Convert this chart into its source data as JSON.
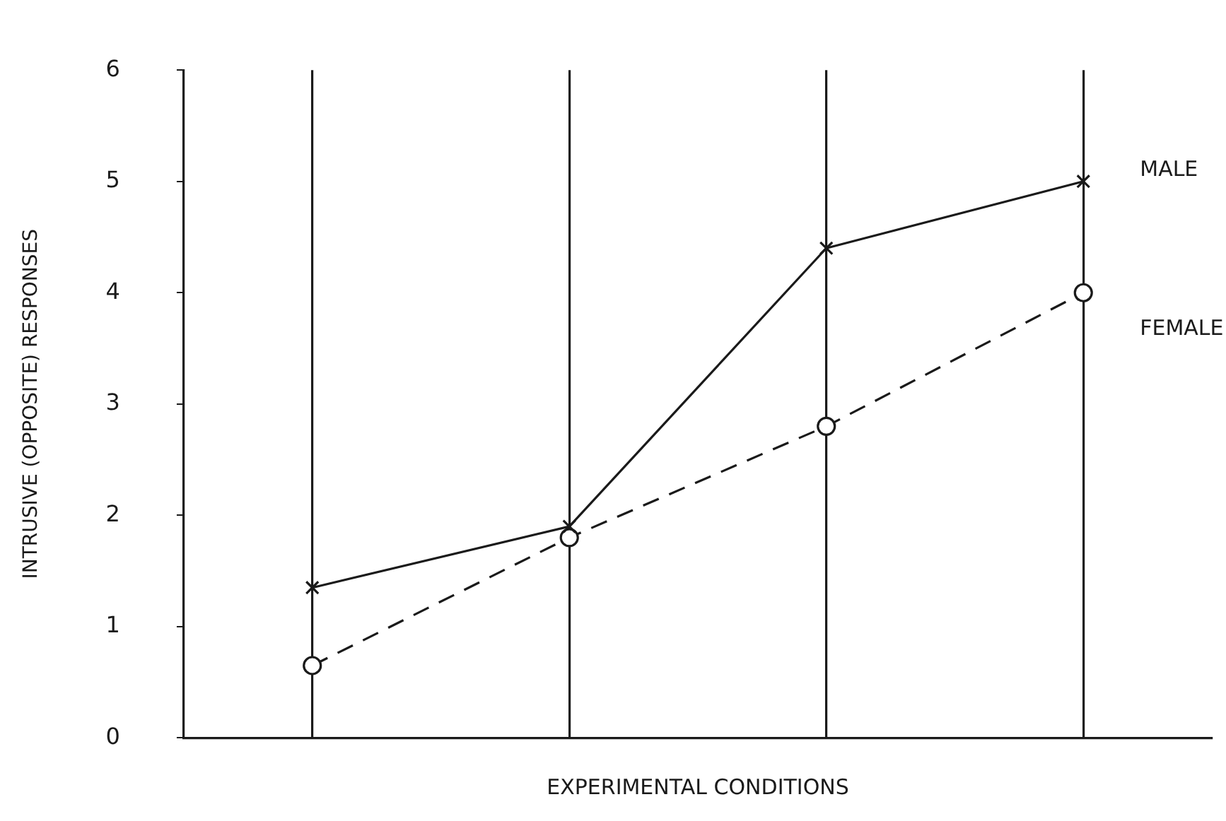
{
  "chart_data": {
    "type": "line",
    "xlabel": "EXPERIMENTAL CONDITIONS",
    "ylabel": "INTRUSIVE (OPPOSITE) RESPONSES",
    "categories": [
      null,
      null,
      null,
      null
    ],
    "series": [
      {
        "name": "MALE",
        "color": "#1a1a1a",
        "values": [
          1.35,
          1.9,
          4.4,
          5.0
        ],
        "marker": "cross",
        "line_style": "solid"
      },
      {
        "name": "FEMALE",
        "color": "#1a1a1a",
        "values": [
          0.65,
          1.8,
          2.8,
          4.0
        ],
        "marker": "circle",
        "line_style": "dashed"
      }
    ],
    "ylim": [
      0,
      6
    ],
    "yticks": [
      0,
      1,
      2,
      3,
      4,
      5,
      6
    ],
    "grid": "x",
    "legend": false
  }
}
